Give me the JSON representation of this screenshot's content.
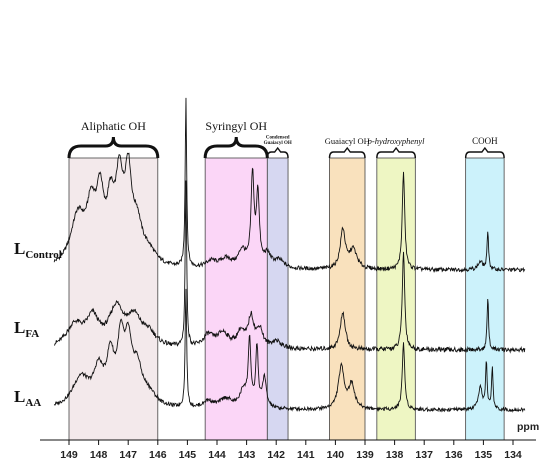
{
  "chart_data": {
    "type": "line",
    "title": "",
    "xlabel": "ppm",
    "ylabel": "",
    "x_reversed": true,
    "xlim": [
      149.5,
      133.6
    ],
    "x_ticks": [
      149,
      148,
      147,
      146,
      145,
      144,
      143,
      142,
      141,
      140,
      139,
      138,
      137,
      136,
      135,
      134
    ],
    "regions": [
      {
        "label": "Aliphatic OH",
        "range": [
          149.0,
          146.0
        ],
        "color": "#f3e9eb",
        "label_size": 12,
        "italic": false
      },
      {
        "label": "Syringyl OH",
        "range": [
          144.4,
          142.3
        ],
        "color": "#fbd6f7",
        "label_size": 12,
        "italic": false
      },
      {
        "label": "Condensed Guaiacyl OH",
        "range": [
          142.3,
          141.6
        ],
        "color": "#d6d7f1",
        "label_size": 5,
        "italic": false
      },
      {
        "label": "Guaiacyl OH",
        "range": [
          140.2,
          139.0
        ],
        "color": "#f9e1bd",
        "label_size": 8.5,
        "italic": false
      },
      {
        "label": "p-hydroxyphenyl",
        "range": [
          138.6,
          137.3
        ],
        "color": "#eef6c3",
        "label_size": 8.5,
        "italic": true
      },
      {
        "label": "COOH",
        "range": [
          135.6,
          134.3
        ],
        "color": "#ccf2fb",
        "label_size": 9,
        "italic": false
      }
    ],
    "series": [
      {
        "name_main": "L",
        "name_sub": "Control",
        "peaks": [
          [
            148.7,
            0.38,
            0.3
          ],
          [
            148.25,
            0.38,
            0.18
          ],
          [
            147.95,
            0.48,
            0.15
          ],
          [
            147.6,
            0.4,
            0.15
          ],
          [
            147.3,
            0.6,
            0.16
          ],
          [
            147.0,
            0.62,
            0.14
          ],
          [
            146.7,
            0.28,
            0.2
          ],
          [
            146.3,
            0.1,
            0.3
          ],
          [
            145.05,
            1.3,
            0.03
          ],
          [
            144.2,
            0.05,
            0.2
          ],
          [
            143.7,
            0.07,
            0.25
          ],
          [
            143.15,
            0.13,
            0.15
          ],
          [
            142.8,
            0.7,
            0.06
          ],
          [
            142.62,
            0.55,
            0.06
          ],
          [
            142.3,
            0.1,
            0.15
          ],
          [
            141.9,
            0.06,
            0.2
          ],
          [
            139.75,
            0.3,
            0.1
          ],
          [
            139.4,
            0.15,
            0.15
          ],
          [
            137.7,
            0.75,
            0.05
          ],
          [
            134.85,
            0.3,
            0.03
          ],
          [
            135.1,
            0.06,
            0.1
          ]
        ]
      },
      {
        "name_main": "L",
        "name_sub": "FA",
        "peaks": [
          [
            148.8,
            0.15,
            0.35
          ],
          [
            148.2,
            0.18,
            0.25
          ],
          [
            147.4,
            0.25,
            0.3
          ],
          [
            146.8,
            0.18,
            0.3
          ],
          [
            146.3,
            0.08,
            0.3
          ],
          [
            145.05,
            1.1,
            0.03
          ],
          [
            144.3,
            0.08,
            0.2
          ],
          [
            143.8,
            0.1,
            0.25
          ],
          [
            143.2,
            0.1,
            0.15
          ],
          [
            142.85,
            0.2,
            0.12
          ],
          [
            142.55,
            0.12,
            0.12
          ],
          [
            142.0,
            0.05,
            0.2
          ],
          [
            139.75,
            0.25,
            0.1
          ],
          [
            137.7,
            0.65,
            0.05
          ],
          [
            134.85,
            0.35,
            0.03
          ]
        ]
      },
      {
        "name_main": "L",
        "name_sub": "AA",
        "peaks": [
          [
            148.6,
            0.25,
            0.35
          ],
          [
            148.0,
            0.28,
            0.2
          ],
          [
            147.6,
            0.38,
            0.15
          ],
          [
            147.25,
            0.5,
            0.14
          ],
          [
            147.0,
            0.45,
            0.14
          ],
          [
            146.7,
            0.3,
            0.2
          ],
          [
            146.3,
            0.1,
            0.3
          ],
          [
            145.05,
            1.0,
            0.03
          ],
          [
            144.3,
            0.06,
            0.2
          ],
          [
            143.7,
            0.08,
            0.25
          ],
          [
            143.1,
            0.15,
            0.15
          ],
          [
            142.9,
            0.55,
            0.05
          ],
          [
            142.65,
            0.5,
            0.05
          ],
          [
            142.4,
            0.25,
            0.08
          ],
          [
            139.8,
            0.35,
            0.12
          ],
          [
            139.45,
            0.2,
            0.12
          ],
          [
            137.7,
            0.55,
            0.05
          ],
          [
            135.1,
            0.18,
            0.08
          ],
          [
            134.9,
            0.4,
            0.03
          ],
          [
            134.7,
            0.35,
            0.03
          ]
        ]
      }
    ]
  }
}
